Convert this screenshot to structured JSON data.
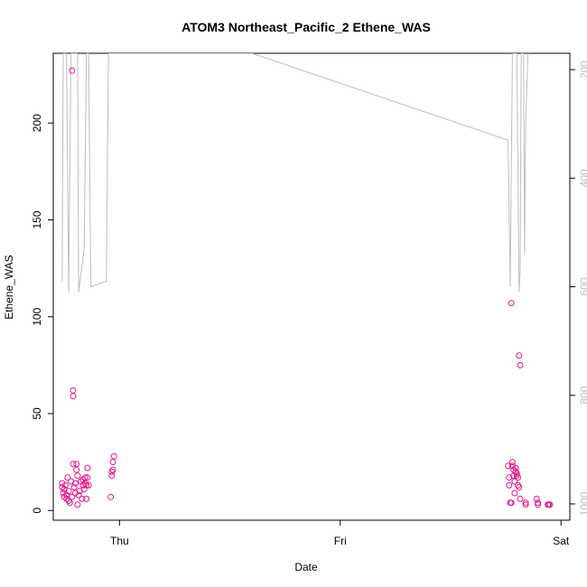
{
  "chart_data": {
    "type": "scatter",
    "title": "ATOM3 Northeast_Pacific_2 Ethene_WAS",
    "xlabel": "Date",
    "ylabel": "Ethene_WAS",
    "x_ticks": [
      {
        "label": "Thu",
        "value": 1.0
      },
      {
        "label": "Fri",
        "value": 2.0
      },
      {
        "label": "Sat",
        "value": 3.0
      }
    ],
    "xlim": [
      0.7,
      3.04
    ],
    "ylim": [
      -5,
      236
    ],
    "y_ticks": [
      0,
      50,
      100,
      150,
      200
    ],
    "y_tick_labels": [
      "0",
      "50",
      "100",
      "150",
      "200"
    ],
    "right_axis": {
      "ylim": [
        1030,
        170
      ],
      "ticks": [
        200,
        400,
        600,
        800,
        1000
      ],
      "tick_labels": [
        "200",
        "400",
        "600",
        "800",
        "1000"
      ],
      "color": "#bdbdbd"
    },
    "series": [
      {
        "type": "scatter",
        "color": "#e0158c",
        "points": [
          [
            0.74,
            14
          ],
          [
            0.74,
            12
          ],
          [
            0.745,
            9
          ],
          [
            0.75,
            7
          ],
          [
            0.75,
            11
          ],
          [
            0.755,
            13
          ],
          [
            0.76,
            8
          ],
          [
            0.76,
            6
          ],
          [
            0.765,
            17
          ],
          [
            0.77,
            10
          ],
          [
            0.77,
            5
          ],
          [
            0.775,
            4
          ],
          [
            0.78,
            15
          ],
          [
            0.785,
            227
          ],
          [
            0.785,
            7
          ],
          [
            0.79,
            59
          ],
          [
            0.79,
            62
          ],
          [
            0.79,
            24
          ],
          [
            0.795,
            12
          ],
          [
            0.8,
            14
          ],
          [
            0.8,
            9
          ],
          [
            0.805,
            21
          ],
          [
            0.805,
            24
          ],
          [
            0.81,
            18
          ],
          [
            0.81,
            3
          ],
          [
            0.815,
            8
          ],
          [
            0.82,
            10
          ],
          [
            0.825,
            15
          ],
          [
            0.83,
            6
          ],
          [
            0.835,
            16
          ],
          [
            0.835,
            13
          ],
          [
            0.84,
            11
          ],
          [
            0.845,
            14
          ],
          [
            0.845,
            17
          ],
          [
            0.85,
            13
          ],
          [
            0.85,
            6
          ],
          [
            0.855,
            22
          ],
          [
            0.855,
            17
          ],
          [
            0.86,
            13
          ],
          [
            0.96,
            7
          ],
          [
            0.965,
            18
          ],
          [
            0.965,
            20
          ],
          [
            0.97,
            21
          ],
          [
            0.97,
            25
          ],
          [
            0.975,
            28
          ],
          [
            2.76,
            23
          ],
          [
            2.765,
            17
          ],
          [
            2.765,
            13
          ],
          [
            2.77,
            4
          ],
          [
            2.775,
            4
          ],
          [
            2.775,
            107
          ],
          [
            2.78,
            25
          ],
          [
            2.78,
            23
          ],
          [
            2.785,
            18
          ],
          [
            2.785,
            21
          ],
          [
            2.79,
            15
          ],
          [
            2.79,
            9
          ],
          [
            2.795,
            20
          ],
          [
            2.795,
            22
          ],
          [
            2.8,
            19
          ],
          [
            2.8,
            18
          ],
          [
            2.805,
            17
          ],
          [
            2.805,
            13
          ],
          [
            2.81,
            12
          ],
          [
            2.81,
            80
          ],
          [
            2.815,
            75
          ],
          [
            2.815,
            6
          ],
          [
            2.84,
            4
          ],
          [
            2.84,
            3
          ],
          [
            2.89,
            6
          ],
          [
            2.895,
            4
          ],
          [
            2.895,
            3
          ],
          [
            2.94,
            3
          ],
          [
            2.945,
            3
          ],
          [
            2.95,
            3
          ]
        ]
      },
      {
        "type": "line",
        "axis": "right",
        "color": "#bdbdbd",
        "points": [
          [
            0.74,
            590
          ],
          [
            0.745,
            170
          ],
          [
            0.76,
            170
          ],
          [
            0.77,
            610
          ],
          [
            0.78,
            170
          ],
          [
            0.81,
            170
          ],
          [
            0.815,
            610
          ],
          [
            0.84,
            530
          ],
          [
            0.85,
            170
          ],
          [
            0.86,
            170
          ],
          [
            0.87,
            600
          ],
          [
            0.94,
            590
          ],
          [
            0.95,
            170
          ],
          [
            1.6,
            170
          ],
          [
            2.76,
            330
          ],
          [
            2.77,
            600
          ],
          [
            2.78,
            170
          ],
          [
            2.8,
            170
          ],
          [
            2.81,
            610
          ],
          [
            2.815,
            570
          ],
          [
            2.82,
            170
          ],
          [
            2.83,
            170
          ],
          [
            2.835,
            540
          ],
          [
            2.84,
            300
          ],
          [
            2.85,
            170
          ]
        ]
      }
    ]
  }
}
